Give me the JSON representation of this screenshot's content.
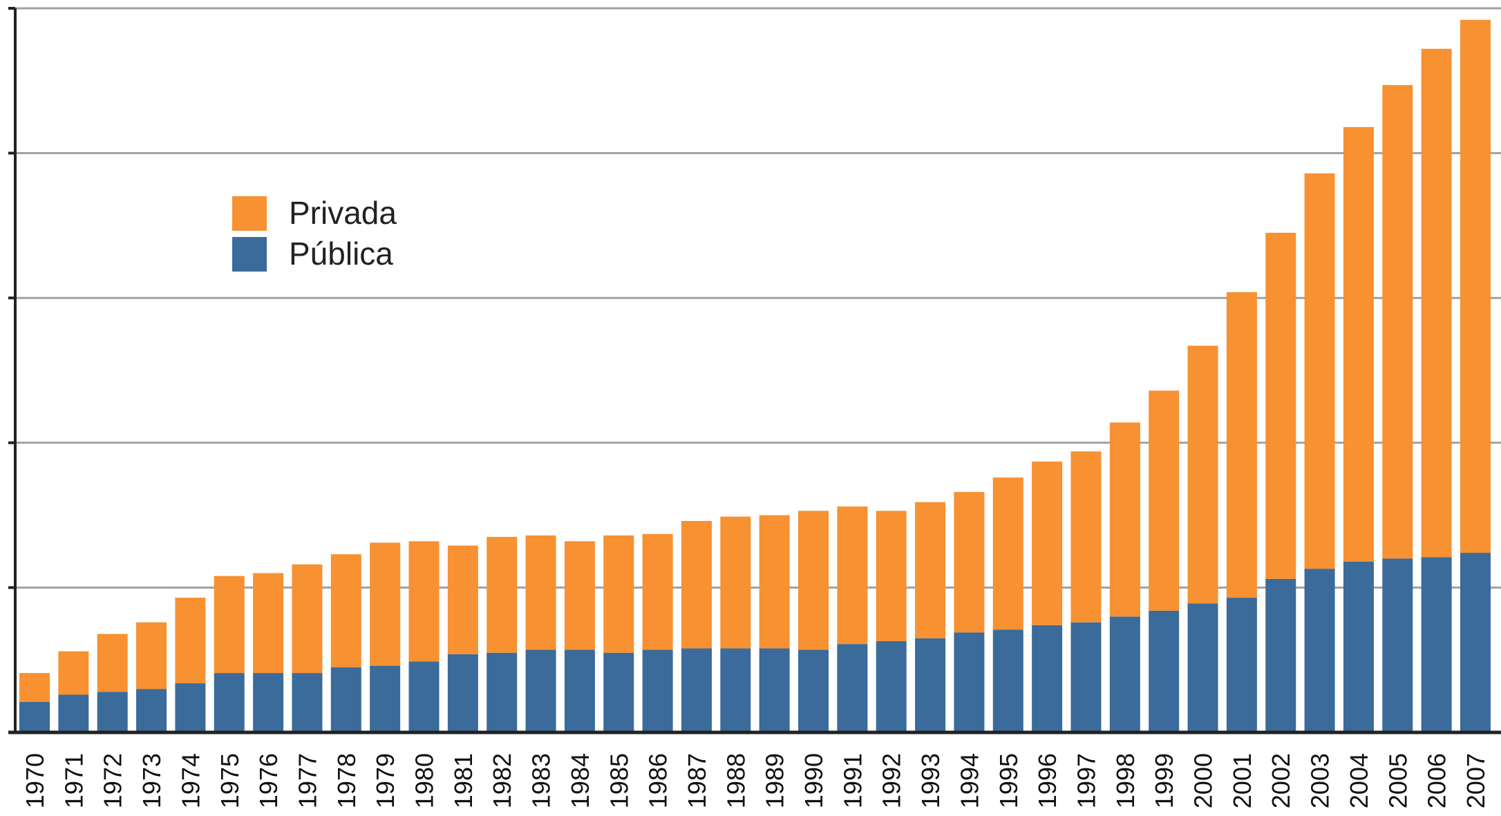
{
  "chart_data": {
    "type": "bar",
    "stacked": true,
    "categories": [
      "1970",
      "1971",
      "1972",
      "1973",
      "1974",
      "1975",
      "1976",
      "1977",
      "1978",
      "1979",
      "1980",
      "1981",
      "1982",
      "1983",
      "1984",
      "1985",
      "1986",
      "1987",
      "1988",
      "1989",
      "1990",
      "1991",
      "1992",
      "1993",
      "1994",
      "1995",
      "1996",
      "1997",
      "1998",
      "1999",
      "2000",
      "2001",
      "2002",
      "2003",
      "2004",
      "2005",
      "2006",
      "2007"
    ],
    "series": [
      {
        "name": "Pública",
        "color": "#3a6b9a",
        "values": [
          0.21,
          0.26,
          0.28,
          0.3,
          0.34,
          0.41,
          0.41,
          0.41,
          0.45,
          0.46,
          0.49,
          0.54,
          0.55,
          0.57,
          0.57,
          0.55,
          0.57,
          0.58,
          0.58,
          0.58,
          0.57,
          0.61,
          0.63,
          0.65,
          0.69,
          0.71,
          0.74,
          0.76,
          0.8,
          0.84,
          0.89,
          0.93,
          1.06,
          1.13,
          1.18,
          1.2,
          1.21,
          1.24
        ]
      },
      {
        "name": "Privada",
        "color": "#f79131",
        "values": [
          0.2,
          0.3,
          0.4,
          0.46,
          0.59,
          0.67,
          0.69,
          0.75,
          0.78,
          0.85,
          0.83,
          0.75,
          0.8,
          0.79,
          0.75,
          0.81,
          0.8,
          0.88,
          0.91,
          0.92,
          0.96,
          0.95,
          0.9,
          0.94,
          0.97,
          1.05,
          1.13,
          1.18,
          1.34,
          1.52,
          1.78,
          2.11,
          2.39,
          2.73,
          3.0,
          3.27,
          3.51,
          3.68
        ]
      }
    ],
    "ylim": [
      0,
      5
    ],
    "yticks": [
      0,
      1,
      2,
      3,
      4,
      5
    ],
    "grid": true,
    "legend_position": "top-left",
    "title": "",
    "xlabel": "",
    "ylabel": ""
  },
  "legend": {
    "items": [
      {
        "label": "Privada",
        "color": "#f79131"
      },
      {
        "label": "Pública",
        "color": "#3a6b9a"
      }
    ]
  }
}
